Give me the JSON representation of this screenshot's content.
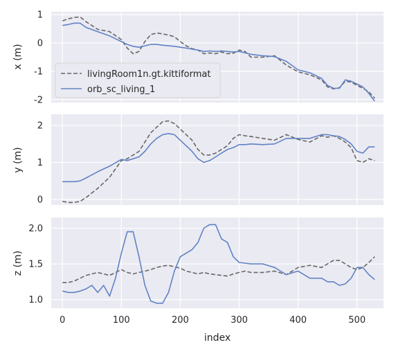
{
  "chart_data": [
    {
      "type": "line",
      "ylabel": "x (m)",
      "xlabel": "",
      "xlim": [
        -19,
        545
      ],
      "ylim": [
        -2.1,
        1.1
      ],
      "yticks": [
        1,
        0,
        -1,
        -2
      ],
      "xticks": [
        0,
        100,
        200,
        300,
        400,
        500
      ],
      "show_xtick_labels": false,
      "grid": true,
      "legend": {
        "placement": "lower-left"
      },
      "series": [
        {
          "name": "livingRoom1n.gt.kittiformat",
          "style": "dashed",
          "color": "#666666",
          "x": [
            0,
            10,
            20,
            30,
            40,
            60,
            80,
            100,
            110,
            120,
            130,
            140,
            150,
            160,
            170,
            180,
            190,
            200,
            210,
            220,
            230,
            240,
            250,
            260,
            270,
            280,
            290,
            300,
            310,
            320,
            340,
            360,
            380,
            400,
            420,
            440,
            450,
            460,
            470,
            480,
            490,
            500,
            510,
            520,
            530
          ],
          "y": [
            0.78,
            0.85,
            0.9,
            0.92,
            0.75,
            0.48,
            0.4,
            0.12,
            -0.18,
            -0.38,
            -0.3,
            0.05,
            0.3,
            0.35,
            0.32,
            0.28,
            0.22,
            0.05,
            -0.1,
            -0.2,
            -0.25,
            -0.38,
            -0.35,
            -0.38,
            -0.32,
            -0.38,
            -0.36,
            -0.25,
            -0.3,
            -0.5,
            -0.5,
            -0.45,
            -0.78,
            -1.02,
            -1.12,
            -1.3,
            -1.55,
            -1.62,
            -1.58,
            -1.35,
            -1.38,
            -1.5,
            -1.6,
            -1.72,
            -1.95
          ]
        },
        {
          "name": "orb_sc_living_1",
          "style": "solid",
          "color": "#5f82c4",
          "x": [
            0,
            10,
            20,
            30,
            40,
            60,
            80,
            100,
            110,
            120,
            130,
            140,
            150,
            160,
            170,
            180,
            190,
            200,
            210,
            220,
            230,
            240,
            250,
            260,
            270,
            280,
            290,
            300,
            310,
            320,
            340,
            360,
            380,
            400,
            420,
            440,
            450,
            460,
            470,
            480,
            490,
            500,
            510,
            520,
            530
          ],
          "y": [
            0.62,
            0.65,
            0.7,
            0.7,
            0.55,
            0.4,
            0.25,
            0.05,
            -0.05,
            -0.12,
            -0.15,
            -0.1,
            -0.05,
            -0.05,
            -0.08,
            -0.1,
            -0.12,
            -0.15,
            -0.18,
            -0.22,
            -0.25,
            -0.3,
            -0.28,
            -0.3,
            -0.28,
            -0.3,
            -0.32,
            -0.3,
            -0.35,
            -0.4,
            -0.45,
            -0.48,
            -0.65,
            -0.95,
            -1.05,
            -1.25,
            -1.5,
            -1.6,
            -1.6,
            -1.3,
            -1.35,
            -1.45,
            -1.55,
            -1.78,
            -2.05
          ]
        }
      ]
    },
    {
      "type": "line",
      "ylabel": "y (m)",
      "xlabel": "",
      "xlim": [
        -19,
        545
      ],
      "ylim": [
        -0.15,
        2.3
      ],
      "yticks": [
        2,
        1,
        0
      ],
      "xticks": [
        0,
        100,
        200,
        300,
        400,
        500
      ],
      "show_xtick_labels": false,
      "grid": true,
      "series": [
        {
          "name": "livingRoom1n.gt.kittiformat",
          "style": "dashed",
          "color": "#666666",
          "x": [
            0,
            10,
            20,
            30,
            40,
            60,
            80,
            100,
            110,
            120,
            130,
            140,
            150,
            160,
            170,
            180,
            190,
            200,
            210,
            220,
            230,
            240,
            250,
            260,
            270,
            280,
            290,
            300,
            310,
            320,
            340,
            360,
            380,
            400,
            420,
            440,
            450,
            460,
            470,
            480,
            490,
            500,
            510,
            520,
            530
          ],
          "y": [
            -0.05,
            -0.08,
            -0.08,
            -0.05,
            0.05,
            0.3,
            0.6,
            1.05,
            1.1,
            1.2,
            1.3,
            1.55,
            1.8,
            1.95,
            2.1,
            2.12,
            2.05,
            1.9,
            1.75,
            1.6,
            1.35,
            1.2,
            1.2,
            1.25,
            1.35,
            1.45,
            1.65,
            1.75,
            1.72,
            1.7,
            1.65,
            1.6,
            1.75,
            1.62,
            1.55,
            1.72,
            1.68,
            1.72,
            1.65,
            1.55,
            1.4,
            1.05,
            1.0,
            1.1,
            1.05
          ]
        },
        {
          "name": "orb_sc_living_1",
          "style": "solid",
          "color": "#5f82c4",
          "x": [
            0,
            10,
            20,
            30,
            40,
            60,
            80,
            100,
            110,
            120,
            130,
            140,
            150,
            160,
            170,
            180,
            190,
            200,
            210,
            220,
            230,
            240,
            250,
            260,
            270,
            280,
            290,
            300,
            310,
            320,
            340,
            360,
            380,
            400,
            420,
            440,
            450,
            460,
            470,
            480,
            490,
            500,
            510,
            520,
            530
          ],
          "y": [
            0.48,
            0.48,
            0.48,
            0.5,
            0.58,
            0.75,
            0.9,
            1.08,
            1.05,
            1.1,
            1.15,
            1.3,
            1.5,
            1.65,
            1.75,
            1.78,
            1.75,
            1.6,
            1.45,
            1.3,
            1.1,
            1.0,
            1.05,
            1.15,
            1.25,
            1.35,
            1.4,
            1.48,
            1.48,
            1.5,
            1.48,
            1.5,
            1.65,
            1.65,
            1.65,
            1.75,
            1.75,
            1.72,
            1.7,
            1.62,
            1.5,
            1.3,
            1.25,
            1.42,
            1.42
          ]
        }
      ]
    },
    {
      "type": "line",
      "ylabel": "z (m)",
      "xlabel": "index",
      "xlim": [
        -19,
        545
      ],
      "ylim": [
        0.88,
        2.15
      ],
      "yticks": [
        2.0,
        1.5,
        1.0
      ],
      "xticks": [
        0,
        100,
        200,
        300,
        400,
        500
      ],
      "show_xtick_labels": true,
      "grid": true,
      "series": [
        {
          "name": "livingRoom1n.gt.kittiformat",
          "style": "dashed",
          "color": "#666666",
          "x": [
            0,
            10,
            20,
            30,
            40,
            60,
            80,
            100,
            110,
            120,
            130,
            140,
            150,
            160,
            170,
            180,
            190,
            200,
            210,
            220,
            230,
            240,
            250,
            260,
            270,
            280,
            290,
            300,
            310,
            320,
            340,
            360,
            380,
            400,
            420,
            440,
            450,
            460,
            470,
            480,
            490,
            500,
            510,
            520,
            530
          ],
          "y": [
            1.24,
            1.24,
            1.26,
            1.3,
            1.34,
            1.38,
            1.34,
            1.42,
            1.38,
            1.36,
            1.38,
            1.4,
            1.42,
            1.45,
            1.47,
            1.48,
            1.46,
            1.44,
            1.4,
            1.38,
            1.36,
            1.38,
            1.36,
            1.35,
            1.34,
            1.33,
            1.36,
            1.38,
            1.4,
            1.38,
            1.38,
            1.4,
            1.35,
            1.45,
            1.48,
            1.45,
            1.5,
            1.55,
            1.55,
            1.5,
            1.45,
            1.42,
            1.45,
            1.52,
            1.6
          ]
        },
        {
          "name": "orb_sc_living_1",
          "style": "solid",
          "color": "#5f82c4",
          "x": [
            0,
            10,
            20,
            30,
            40,
            50,
            60,
            70,
            80,
            90,
            100,
            110,
            120,
            130,
            140,
            150,
            160,
            170,
            180,
            190,
            200,
            210,
            220,
            230,
            240,
            250,
            260,
            270,
            280,
            290,
            300,
            320,
            340,
            360,
            380,
            400,
            420,
            440,
            450,
            460,
            470,
            480,
            490,
            500,
            510,
            520,
            530
          ],
          "y": [
            1.12,
            1.1,
            1.1,
            1.12,
            1.15,
            1.2,
            1.1,
            1.2,
            1.05,
            1.3,
            1.65,
            1.95,
            1.95,
            1.6,
            1.2,
            0.98,
            0.95,
            0.95,
            1.1,
            1.4,
            1.6,
            1.65,
            1.7,
            1.8,
            2.0,
            2.05,
            2.05,
            1.85,
            1.8,
            1.6,
            1.52,
            1.5,
            1.5,
            1.45,
            1.35,
            1.4,
            1.3,
            1.3,
            1.25,
            1.25,
            1.2,
            1.22,
            1.3,
            1.45,
            1.45,
            1.35,
            1.28
          ]
        }
      ]
    }
  ]
}
